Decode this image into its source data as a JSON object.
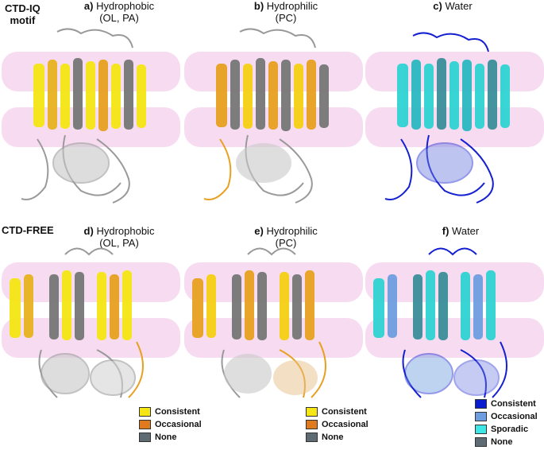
{
  "rows": [
    {
      "label_line1": "CTD-IQ",
      "label_line2": "motif"
    },
    {
      "label_line1": "CTD-FREE",
      "label_line2": ""
    }
  ],
  "panels": [
    {
      "letter": "a)",
      "title": "Hydrophobic",
      "subtitle": "(OL, PA)"
    },
    {
      "letter": "b)",
      "title": "Hydrophilic",
      "subtitle": "(PC)"
    },
    {
      "letter": "c)",
      "title": "Water",
      "subtitle": ""
    },
    {
      "letter": "d)",
      "title": "Hydrophobic",
      "subtitle": "(OL, PA)"
    },
    {
      "letter": "e)",
      "title": "Hydrophilic",
      "subtitle": "(PC)"
    },
    {
      "letter": "f)",
      "title": "Water",
      "subtitle": ""
    }
  ],
  "legends": {
    "lipid": [
      {
        "label": "Consistent",
        "color": "#f5e614"
      },
      {
        "label": "Occasional",
        "color": "#e07a1f"
      },
      {
        "label": "None",
        "color": "#5f6b73"
      }
    ],
    "water": [
      {
        "label": "Consistent",
        "color": "#0a1ccf"
      },
      {
        "label": "Occasional",
        "color": "#6f9ee0"
      },
      {
        "label": "Sporadic",
        "color": "#3fe6e6"
      },
      {
        "label": "None",
        "color": "#5f6b73"
      }
    ]
  },
  "colors": {
    "membrane": "#f6d6ef",
    "lipid_consistent": "#f5e614",
    "lipid_occasional": "#e8a020",
    "none": "#8a8a8a",
    "water_consistent": "#1520d0",
    "water_sporadic": "#2fd3d3"
  }
}
